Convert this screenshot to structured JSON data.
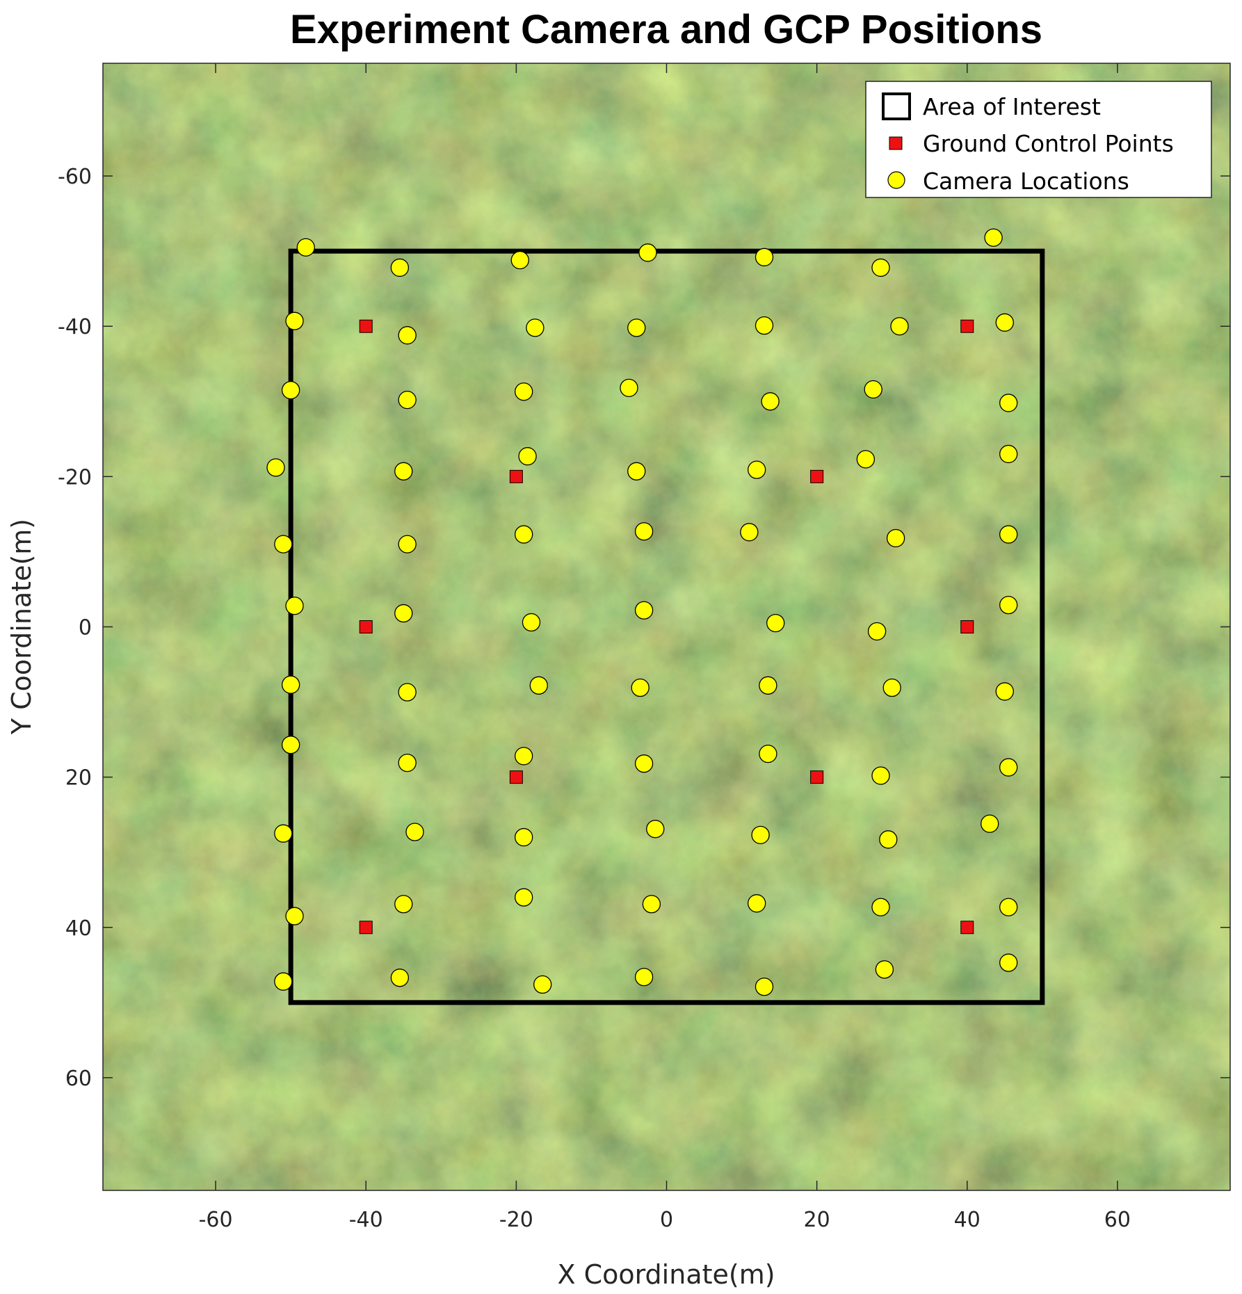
{
  "chart_data": {
    "type": "scatter",
    "title": "Experiment Camera and GCP Positions",
    "xlabel": "X Coordinate(m)",
    "ylabel": "Y Coordinate(m)",
    "xlim": [
      -75,
      75
    ],
    "ylim": [
      -75,
      75
    ],
    "y_axis_reversed": true,
    "xticks": [
      -60,
      -40,
      -20,
      0,
      20,
      40,
      60
    ],
    "yticks": [
      -60,
      -40,
      -20,
      0,
      20,
      40,
      60
    ],
    "grid": false,
    "background": "aerial-imagery",
    "legend_position": "top-right",
    "colors": {
      "area_of_interest": "#000000",
      "gcp": "#ee1111",
      "camera": "#ffff00",
      "marker_edge": "#000000"
    },
    "series": [
      {
        "name": "Area of Interest",
        "kind": "rectangle",
        "x": [
          -50,
          50
        ],
        "y": [
          -50,
          50
        ]
      },
      {
        "name": "Ground Control Points",
        "kind": "square-marker",
        "points": [
          [
            -40,
            -40
          ],
          [
            40,
            -40
          ],
          [
            -20,
            -20
          ],
          [
            20,
            -20
          ],
          [
            -40,
            0
          ],
          [
            40,
            0
          ],
          [
            -20,
            20
          ],
          [
            20,
            20
          ],
          [
            -40,
            40
          ],
          [
            40,
            40
          ]
        ]
      },
      {
        "name": "Camera Locations",
        "kind": "circle-marker",
        "points": [
          [
            -48.0,
            -50.5
          ],
          [
            -35.5,
            -47.8
          ],
          [
            -19.5,
            -48.8
          ],
          [
            -2.5,
            -49.8
          ],
          [
            13.0,
            -49.2
          ],
          [
            28.5,
            -47.8
          ],
          [
            43.5,
            -51.8
          ],
          [
            -49.5,
            -40.7
          ],
          [
            -34.5,
            -38.8
          ],
          [
            -17.5,
            -39.8
          ],
          [
            -4.0,
            -39.8
          ],
          [
            13.0,
            -40.1
          ],
          [
            31.0,
            -40.0
          ],
          [
            45.0,
            -40.5
          ],
          [
            -50.0,
            -31.5
          ],
          [
            -34.5,
            -30.2
          ],
          [
            -19.0,
            -31.3
          ],
          [
            -5.0,
            -31.8
          ],
          [
            13.8,
            -30.0
          ],
          [
            27.5,
            -31.6
          ],
          [
            45.5,
            -29.8
          ],
          [
            -52.0,
            -21.2
          ],
          [
            -35.0,
            -20.7
          ],
          [
            -18.5,
            -22.7
          ],
          [
            -4.0,
            -20.7
          ],
          [
            12.0,
            -20.9
          ],
          [
            26.5,
            -22.3
          ],
          [
            45.5,
            -23.0
          ],
          [
            -51.0,
            -11.0
          ],
          [
            -34.5,
            -11.0
          ],
          [
            -19.0,
            -12.3
          ],
          [
            -3.0,
            -12.7
          ],
          [
            11.0,
            -12.6
          ],
          [
            30.5,
            -11.8
          ],
          [
            45.5,
            -12.3
          ],
          [
            -49.5,
            -2.8
          ],
          [
            -35.0,
            -1.8
          ],
          [
            -18.0,
            -0.6
          ],
          [
            -3.0,
            -2.2
          ],
          [
            14.5,
            -0.5
          ],
          [
            28.0,
            0.6
          ],
          [
            45.5,
            -2.9
          ],
          [
            -50.0,
            7.7
          ],
          [
            -34.5,
            8.7
          ],
          [
            -17.0,
            7.8
          ],
          [
            -3.5,
            8.1
          ],
          [
            13.5,
            7.8
          ],
          [
            30.0,
            8.1
          ],
          [
            45.0,
            8.6
          ],
          [
            -50.0,
            15.7
          ],
          [
            -34.5,
            18.1
          ],
          [
            -19.0,
            17.2
          ],
          [
            -3.0,
            18.2
          ],
          [
            13.5,
            16.9
          ],
          [
            28.5,
            19.8
          ],
          [
            45.5,
            18.7
          ],
          [
            -51.0,
            27.5
          ],
          [
            -33.5,
            27.3
          ],
          [
            -19.0,
            28.0
          ],
          [
            -1.5,
            26.9
          ],
          [
            12.5,
            27.7
          ],
          [
            29.5,
            28.3
          ],
          [
            43.0,
            26.2
          ],
          [
            -49.5,
            38.5
          ],
          [
            -35.0,
            36.9
          ],
          [
            -19.0,
            36.0
          ],
          [
            -2.0,
            36.9
          ],
          [
            12.0,
            36.8
          ],
          [
            28.5,
            37.3
          ],
          [
            45.5,
            37.3
          ],
          [
            -51.0,
            47.2
          ],
          [
            -35.5,
            46.7
          ],
          [
            -16.5,
            47.6
          ],
          [
            -3.0,
            46.6
          ],
          [
            13.0,
            47.9
          ],
          [
            29.0,
            45.6
          ],
          [
            45.5,
            44.7
          ]
        ]
      }
    ]
  }
}
